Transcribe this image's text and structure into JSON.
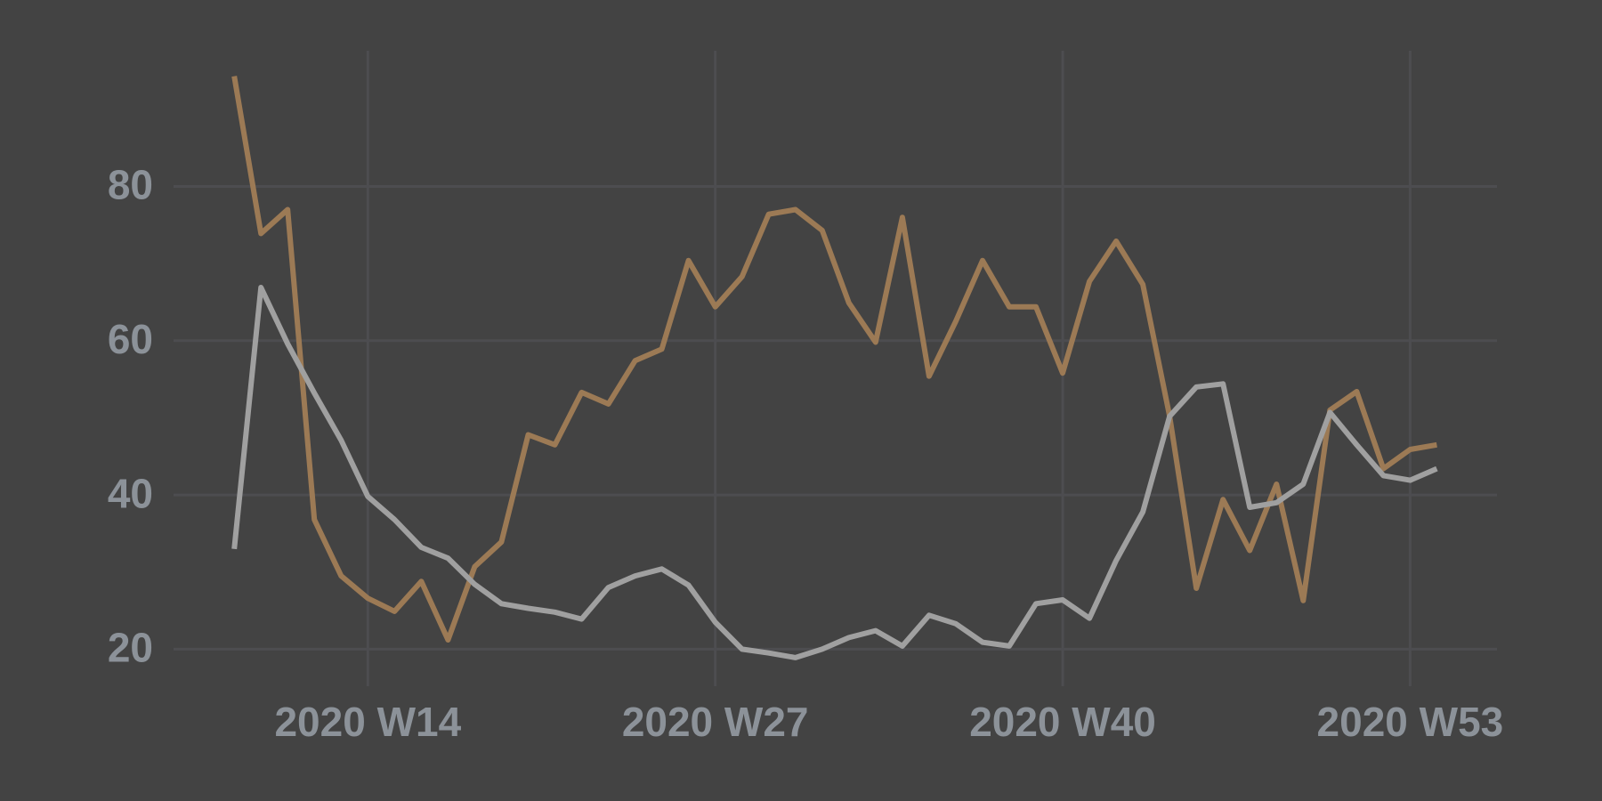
{
  "chart_data": {
    "type": "line",
    "x": [
      9,
      10,
      11,
      12,
      13,
      14,
      15,
      16,
      17,
      18,
      19,
      20,
      21,
      22,
      23,
      24,
      25,
      26,
      27,
      28,
      29,
      30,
      31,
      32,
      33,
      34,
      35,
      36,
      37,
      38,
      39,
      40,
      41,
      42,
      43,
      44,
      45,
      46,
      47,
      48,
      49,
      50,
      51,
      52,
      53,
      54
    ],
    "series": [
      {
        "color": "#9c7a55",
        "values": [
          94.3,
          73.9,
          77.0,
          36.8,
          29.5,
          26.6,
          24.9,
          28.8,
          21.2,
          30.7,
          33.9,
          47.8,
          46.5,
          53.3,
          51.8,
          57.4,
          58.9,
          70.4,
          64.4,
          68.3,
          76.4,
          77.0,
          74.3,
          64.9,
          59.8,
          76.0,
          55.4,
          62.5,
          70.4,
          64.4,
          64.4,
          55.8,
          67.7,
          72.9,
          67.3,
          50.2,
          27.9,
          39.4,
          32.8,
          41.4,
          26.3,
          51.0,
          53.4,
          43.4,
          45.9,
          46.5
        ]
      },
      {
        "color": "#a0a0a0",
        "values": [
          33.0,
          66.9,
          59.6,
          53.2,
          47.1,
          39.8,
          36.8,
          33.2,
          31.8,
          28.4,
          25.9,
          25.3,
          24.8,
          23.9,
          28.0,
          29.5,
          30.4,
          28.3,
          23.5,
          20.0,
          19.5,
          18.9,
          20.0,
          21.5,
          22.4,
          20.4,
          24.4,
          23.3,
          20.9,
          20.4,
          25.9,
          26.4,
          24.0,
          31.5,
          37.8,
          50.2,
          54.0,
          54.4,
          38.4,
          39.0,
          41.4,
          50.7,
          46.5,
          42.5,
          41.9,
          43.4
        ]
      }
    ],
    "xlim": [
      6.73,
      56.25
    ],
    "xticks": [
      {
        "value": 14,
        "label": "2020 W14"
      },
      {
        "value": 27,
        "label": "2020 W27"
      },
      {
        "value": 40,
        "label": "2020 W40"
      },
      {
        "value": 53,
        "label": "2020 W53"
      }
    ],
    "ylim": [
      15.2,
      97.6
    ],
    "yticks": [
      20,
      40,
      60,
      80
    ],
    "grid": true,
    "grid_color": "#4d4d50",
    "background": "#434343"
  }
}
